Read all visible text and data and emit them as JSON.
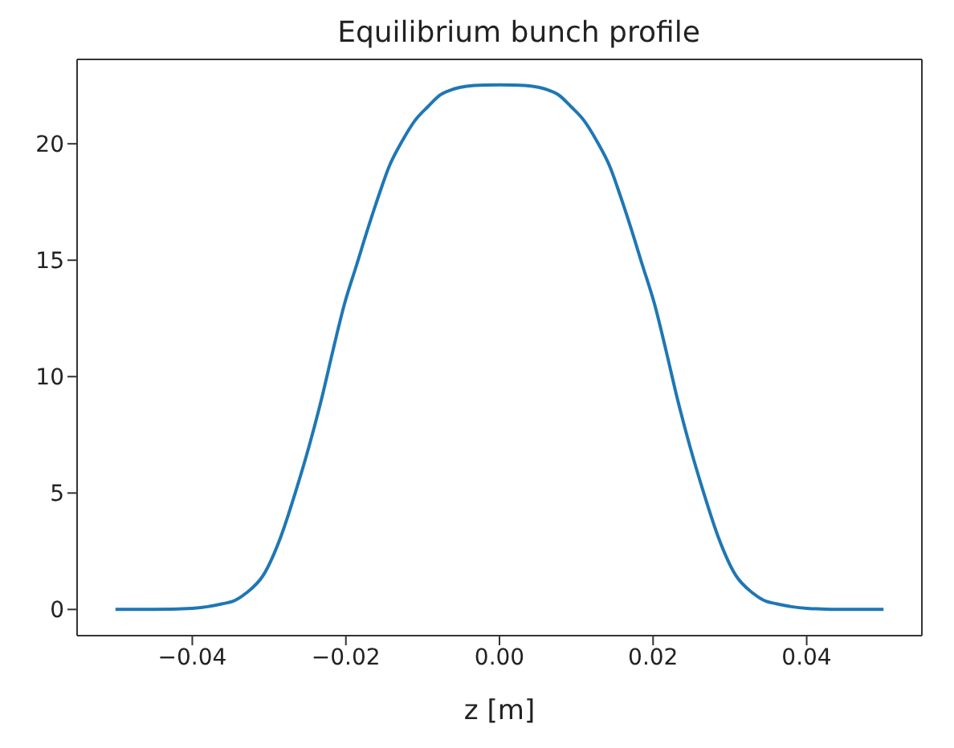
{
  "chart_data": {
    "type": "line",
    "title": "Equilibrium bunch profile",
    "xlabel": "z [m]",
    "x": [
      -0.05,
      -0.045,
      -0.04,
      -0.038,
      -0.036,
      -0.0347,
      -0.033,
      -0.0307,
      -0.0285,
      -0.0266,
      -0.0248,
      -0.0232,
      -0.0217,
      -0.0202,
      -0.0186,
      -0.0171,
      -0.0157,
      -0.0144,
      -0.0127,
      -0.011,
      -0.0093,
      -0.0077,
      -0.006,
      -0.0043,
      -0.002,
      0,
      0.002,
      0.0043,
      0.006,
      0.0077,
      0.0093,
      0.011,
      0.0127,
      0.0144,
      0.0157,
      0.0171,
      0.0186,
      0.0202,
      0.0217,
      0.0232,
      0.0248,
      0.0266,
      0.0285,
      0.0307,
      0.033,
      0.0347,
      0.036,
      0.038,
      0.04,
      0.045,
      0.05
    ],
    "series": [
      {
        "color": "#1f77b4",
        "values": [
          0,
          0,
          0.05,
          0.12,
          0.25,
          0.35,
          0.7,
          1.5,
          3.1,
          5.0,
          7.0,
          9.0,
          11.1,
          13.1,
          14.8,
          16.4,
          17.8,
          19.0,
          20.1,
          21.0,
          21.6,
          22.1,
          22.35,
          22.47,
          22.52,
          22.53,
          22.52,
          22.47,
          22.35,
          22.1,
          21.6,
          21.0,
          20.1,
          19.0,
          17.8,
          16.4,
          14.8,
          13.1,
          11.1,
          9.0,
          7.0,
          5.0,
          3.1,
          1.5,
          0.7,
          0.35,
          0.25,
          0.12,
          0.05,
          0,
          0
        ]
      }
    ],
    "xlim": [
      -0.055,
      0.055
    ],
    "xticks": [
      {
        "value": -0.04,
        "label": "−0.04"
      },
      {
        "value": -0.02,
        "label": "−0.02"
      },
      {
        "value": 0,
        "label": "0.00"
      },
      {
        "value": 0.02,
        "label": "0.02"
      },
      {
        "value": 0.04,
        "label": "0.04"
      }
    ],
    "ylim": [
      -1.125,
      23.625
    ],
    "yticks": [
      0,
      5,
      10,
      15,
      20
    ],
    "grid": false,
    "legend": false,
    "marker": "none",
    "line_style": "solid"
  }
}
